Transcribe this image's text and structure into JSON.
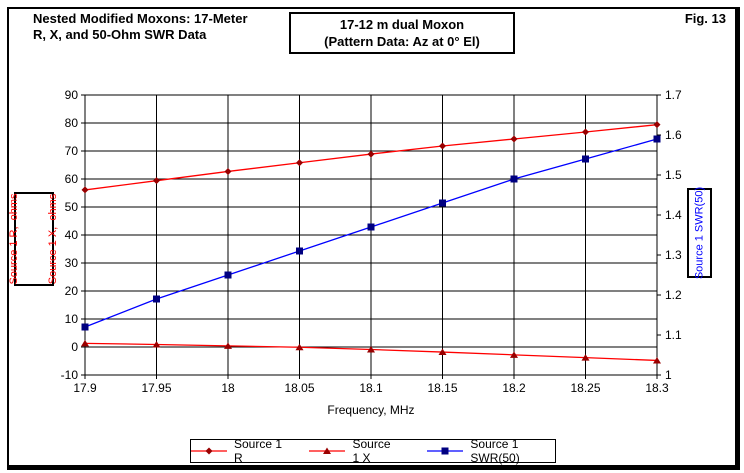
{
  "header": {
    "title_line1": "Nested Modified Moxons: 17-Meter",
    "title_line2": "R, X, and 50-Ohm SWR Data",
    "annotation_line1": "17-12 m dual Moxon",
    "annotation_line2": "(Pattern Data: Az at 0° El)",
    "fig_label": "Fig. 13"
  },
  "chart_data": {
    "type": "line",
    "title": "Nested Modified Moxons: 17-Meter R, X, and 50-Ohm SWR Data",
    "xlabel": "Frequency, MHz",
    "ylabel_left_line1": "Source 1 R,  ohms",
    "ylabel_left_line2": "Source 1 X,  ohms",
    "ylabel_right": "Source 1 SWR(50)",
    "grid": true,
    "legend_position": "bottom",
    "xlim": [
      17.9,
      18.3
    ],
    "ylim_left": [
      -10,
      90
    ],
    "ylim_right": [
      1.0,
      1.7
    ],
    "x_ticks": [
      17.9,
      17.95,
      18.0,
      18.05,
      18.1,
      18.15,
      18.2,
      18.25,
      18.3
    ],
    "x_tick_labels": [
      "17.9",
      "17.95",
      "18",
      "18.05",
      "18.1",
      "18.15",
      "18.2",
      "18.25",
      "18.3"
    ],
    "left_ticks": [
      90,
      80,
      70,
      60,
      50,
      40,
      30,
      20,
      10,
      0,
      -10
    ],
    "left_tick_labels": [
      "90",
      "80",
      "70",
      "60",
      "50",
      "40",
      "30",
      "20",
      "10",
      "0",
      "-10"
    ],
    "right_ticks": [
      1.7,
      1.6,
      1.5,
      1.4,
      1.3,
      1.2,
      1.1,
      1.0
    ],
    "right_tick_labels": [
      "1.7",
      "1.6",
      "1.5",
      "1.4",
      "1.3",
      "1.2",
      "1.1",
      "1"
    ],
    "x": [
      17.9,
      17.95,
      18.0,
      18.05,
      18.1,
      18.15,
      18.2,
      18.25,
      18.3
    ],
    "series": [
      {
        "name": "Source 1 R",
        "axis": "left",
        "color": "#ff0000",
        "marker": "diamond",
        "marker_color": "#990000",
        "values": [
          56.1,
          59.4,
          62.7,
          65.8,
          68.9,
          71.8,
          74.3,
          76.8,
          79.4
        ]
      },
      {
        "name": "Source 1 X",
        "axis": "left",
        "color": "#ff0000",
        "marker": "triangle",
        "marker_color": "#990000",
        "values": [
          1.3,
          0.9,
          0.4,
          -0.1,
          -0.9,
          -1.8,
          -2.8,
          -3.8,
          -4.8
        ]
      },
      {
        "name": "Source 1 SWR(50)",
        "axis": "right",
        "color": "#0000ff",
        "marker": "square",
        "marker_color": "#000080",
        "values": [
          1.12,
          1.19,
          1.25,
          1.31,
          1.37,
          1.43,
          1.49,
          1.54,
          1.59
        ]
      }
    ],
    "colors": {
      "axis": "#000000",
      "grid": "#000000",
      "left_label": "#ff0000",
      "right_label": "#0000ff"
    }
  }
}
